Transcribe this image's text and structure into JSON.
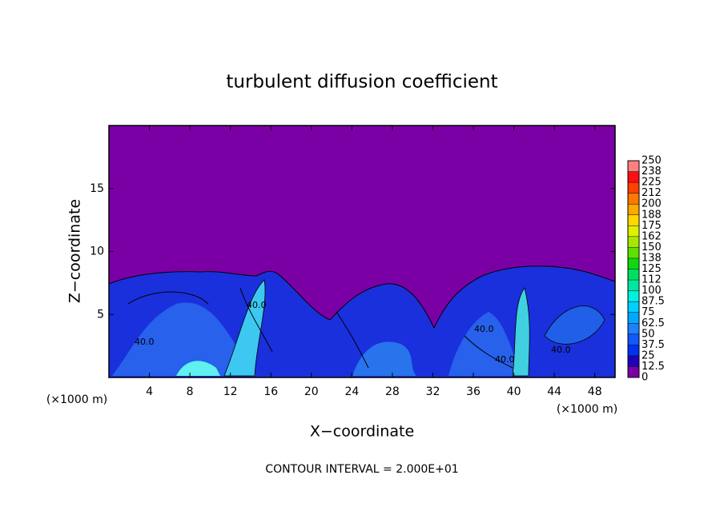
{
  "chart_data": {
    "type": "contour",
    "title": "turbulent diffusion coefficient",
    "xlabel": "X−coordinate",
    "ylabel": "Z−coordinate",
    "x_unit_labels": [
      "(×1000 m)",
      "(×1000 m)"
    ],
    "footnote": "CONTOUR INTERVAL = 2.000E+01",
    "xlim": [
      0,
      50
    ],
    "xticks": [
      4,
      8,
      12,
      16,
      20,
      24,
      28,
      32,
      36,
      40,
      44,
      48
    ],
    "ylim": [
      0,
      20
    ],
    "yticks": [
      5,
      10,
      15
    ],
    "contour_labels": [
      "40.0",
      "40.0",
      "40.0",
      "40.0",
      "40.0"
    ],
    "colorbar": {
      "ticks": [
        0,
        12.5,
        25,
        37.5,
        50,
        62.5,
        75,
        87.5,
        100,
        {
          "value": 112.5,
          "label": "112"
        },
        125,
        {
          "value": 137.5,
          "label": "138"
        },
        150,
        {
          "value": 162.5,
          "label": "162"
        },
        175,
        {
          "value": 187.5,
          "label": "188"
        },
        200,
        {
          "value": 212.5,
          "label": "212"
        },
        225,
        {
          "value": 237.5,
          "label": "238"
        },
        250
      ],
      "colors": [
        "#7a00a6",
        "#2000b8",
        "#0030f0",
        "#1058ff",
        "#1e80ff",
        "#00a8ff",
        "#00d0ff",
        "#00f0e0",
        "#00e8a0",
        "#00e060",
        "#10d810",
        "#60e000",
        "#a8e800",
        "#e0f000",
        "#ffd800",
        "#ffa800",
        "#ff7800",
        "#ff4000",
        "#ff1010",
        "#ff8080"
      ]
    }
  }
}
